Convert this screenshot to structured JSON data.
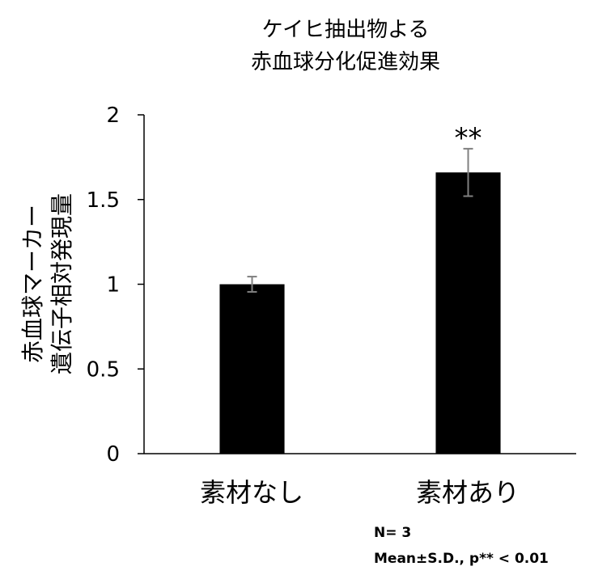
{
  "chart_data": {
    "type": "bar",
    "title_lines": [
      "ケイヒ抽出物よる",
      "赤血球分化促進効果"
    ],
    "ylabel_lines": [
      "赤血球マーカー",
      "遺伝子相対発現量"
    ],
    "xlabel": "",
    "categories": [
      "素材なし",
      "素材あり"
    ],
    "series": [
      {
        "values": [
          1.0,
          1.66
        ],
        "errors": [
          0.045,
          0.14
        ]
      }
    ],
    "significance": [
      "",
      "**"
    ],
    "ylim": [
      0,
      2
    ],
    "yticks": [
      0,
      0.5,
      1,
      1.5,
      2
    ],
    "ytick_labels": [
      "0",
      "0.5",
      "1",
      "1.5",
      "2"
    ],
    "grid": false,
    "legend": "none",
    "bar_color": "#000000",
    "error_bar_color": "#808080",
    "axis_color": "#000000"
  },
  "notes": {
    "n_text": "N= 3",
    "stat_text": "Mean±S.D., p** < 0.01"
  }
}
